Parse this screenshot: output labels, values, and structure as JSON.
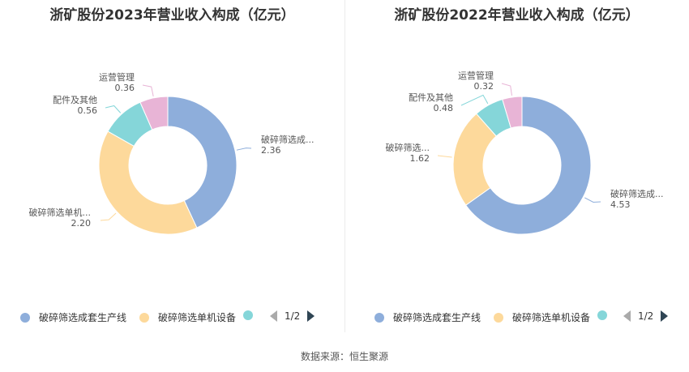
{
  "source": "数据来源：恒生聚源",
  "colors": [
    "#8eaedb",
    "#fdd99b",
    "#85d6d9",
    "#e8b4d6"
  ],
  "chart_data": [
    {
      "type": "pie",
      "title": "浙矿股份2023年营业收入构成（亿元）",
      "categories": [
        "破碎筛选成套生产线",
        "破碎筛选单机设备",
        "配件及其他",
        "运营管理"
      ],
      "label_names": [
        "破碎筛选成...",
        "破碎筛选单机...",
        "配件及其他",
        "运营管理"
      ],
      "values": [
        2.36,
        2.2,
        0.56,
        0.36
      ],
      "value_labels": [
        "2.36",
        "2.20",
        "0.56",
        "0.36"
      ],
      "legend": {
        "items": [
          "破碎筛选成套生产线",
          "破碎筛选单机设备",
          ""
        ],
        "page": "1/2"
      }
    },
    {
      "type": "pie",
      "title": "浙矿股份2022年营业收入构成（亿元）",
      "categories": [
        "破碎筛选成套生产线",
        "破碎筛选单机设备",
        "配件及其他",
        "运营管理"
      ],
      "label_names": [
        "破碎筛选成...",
        "破碎筛选...",
        "配件及其他",
        "运营管理"
      ],
      "values": [
        4.53,
        1.62,
        0.48,
        0.32
      ],
      "value_labels": [
        "4.53",
        "1.62",
        "0.48",
        "0.32"
      ],
      "legend": {
        "items": [
          "破碎筛选成套生产线",
          "破碎筛选单机设备",
          ""
        ],
        "page": "1/2"
      }
    }
  ]
}
